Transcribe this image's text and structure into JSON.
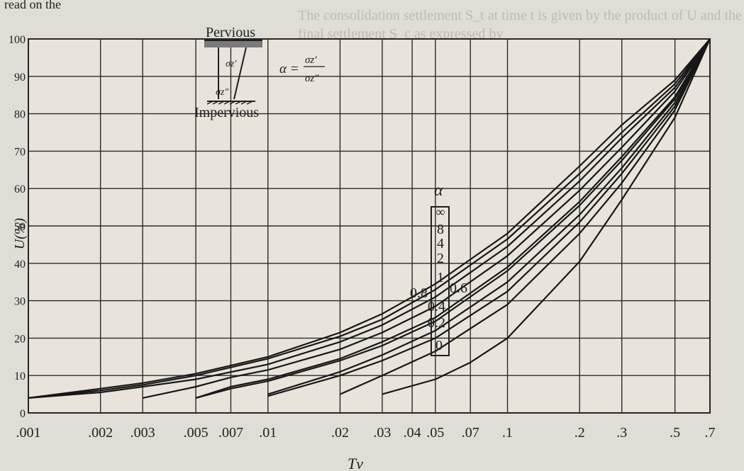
{
  "page_text": {
    "top_fragment": "read on the",
    "bg_line_1": "The consolidation settlement S_t at time t is given by the product of U and the",
    "bg_line_2": "final settlement S_c as expressed by"
  },
  "diagram": {
    "top_label": "Pervious",
    "bottom_label": "Impervious",
    "stress_top": "σz′",
    "stress_bottom": "σz″",
    "alpha_lhs": "α =",
    "alpha_num": "σz′",
    "alpha_den": "σz″"
  },
  "chart_data": {
    "type": "line",
    "title": "",
    "xlabel": "Tv",
    "ylabel": "U(%)",
    "xscale": "log",
    "xlim": [
      0.001,
      0.7
    ],
    "ylim": [
      0,
      100
    ],
    "x_ticks": [
      ".001",
      ".002",
      ".003",
      ".005",
      ".007",
      ".01",
      ".02",
      ".03",
      ".04",
      ".05",
      ".07",
      ".1",
      ".2",
      ".3",
      ".5",
      ".7"
    ],
    "x_tick_values": [
      0.001,
      0.002,
      0.003,
      0.005,
      0.007,
      0.01,
      0.02,
      0.03,
      0.04,
      0.05,
      0.07,
      0.1,
      0.2,
      0.3,
      0.5,
      0.7
    ],
    "y_ticks": [
      "0",
      "10",
      "20",
      "30",
      "40",
      "50",
      "60",
      "70",
      "80",
      "90",
      "100"
    ],
    "y_tick_values": [
      0,
      10,
      20,
      30,
      40,
      50,
      60,
      70,
      80,
      90,
      100
    ],
    "legend_title": "α",
    "legend_labels_in_box": [
      "∞",
      "8",
      "4",
      "2",
      "1"
    ],
    "curve_labels": [
      "0.8",
      "0.6",
      "0.4",
      "0.2",
      "0"
    ],
    "grid": true,
    "series": [
      {
        "name": "∞",
        "x": [
          0.001,
          0.002,
          0.003,
          0.005,
          0.01,
          0.02,
          0.03,
          0.05,
          0.1,
          0.2,
          0.3,
          0.5,
          0.7
        ],
        "y": [
          4,
          6.5,
          8,
          10.5,
          15,
          21.5,
          26.5,
          34.5,
          48,
          66,
          77,
          89,
          100
        ]
      },
      {
        "name": "8",
        "x": [
          0.001,
          0.002,
          0.003,
          0.005,
          0.01,
          0.02,
          0.03,
          0.05,
          0.1,
          0.2,
          0.3,
          0.5,
          0.7
        ],
        "y": [
          4,
          6,
          7.5,
          10,
          14.5,
          20.5,
          25,
          33,
          46.5,
          64,
          75,
          88,
          100
        ]
      },
      {
        "name": "4",
        "x": [
          0.001,
          0.002,
          0.003,
          0.005,
          0.01,
          0.02,
          0.03,
          0.05,
          0.1,
          0.2,
          0.3,
          0.5,
          0.7
        ],
        "y": [
          4,
          5.5,
          7,
          9,
          13,
          19,
          23.5,
          31,
          44.5,
          62,
          73.5,
          87,
          100
        ]
      },
      {
        "name": "2",
        "x": [
          0.003,
          0.005,
          0.007,
          0.01,
          0.02,
          0.03,
          0.05,
          0.1,
          0.2,
          0.3,
          0.5,
          0.7
        ],
        "y": [
          4,
          7,
          9.5,
          11.5,
          17,
          21.5,
          28.5,
          42,
          59.5,
          71,
          86,
          100
        ]
      },
      {
        "name": "1",
        "x": [
          0.005,
          0.007,
          0.01,
          0.02,
          0.03,
          0.05,
          0.1,
          0.2,
          0.3,
          0.5,
          0.7
        ],
        "y": [
          4,
          7,
          9,
          14.5,
          19,
          25.5,
          39,
          56.5,
          68.5,
          84.5,
          100
        ]
      },
      {
        "name": "0.8",
        "x": [
          0.005,
          0.007,
          0.01,
          0.02,
          0.03,
          0.05,
          0.1,
          0.2,
          0.3,
          0.5,
          0.7
        ],
        "y": [
          4,
          6.5,
          8.5,
          14,
          18,
          24.5,
          38,
          55.5,
          67.5,
          84,
          100
        ]
      },
      {
        "name": "0.6",
        "x": [
          0.01,
          0.02,
          0.03,
          0.05,
          0.1,
          0.2,
          0.3,
          0.5,
          0.7
        ],
        "y": [
          5,
          11,
          15.5,
          22,
          35,
          53,
          65.5,
          83,
          100
        ]
      },
      {
        "name": "0.4",
        "x": [
          0.01,
          0.02,
          0.03,
          0.05,
          0.1,
          0.2,
          0.3,
          0.5,
          0.7
        ],
        "y": [
          4.5,
          10,
          14,
          20,
          32.5,
          51,
          64,
          82,
          100
        ]
      },
      {
        "name": "0.2",
        "x": [
          0.02,
          0.03,
          0.05,
          0.1,
          0.2,
          0.3,
          0.5,
          0.7
        ],
        "y": [
          5,
          10,
          16.5,
          29,
          48,
          61.5,
          81,
          100
        ]
      },
      {
        "name": "0",
        "x": [
          0.03,
          0.05,
          0.07,
          0.1,
          0.2,
          0.3,
          0.5,
          0.7
        ],
        "y": [
          5,
          9,
          13.5,
          20,
          40.5,
          57,
          79,
          100
        ]
      }
    ]
  }
}
